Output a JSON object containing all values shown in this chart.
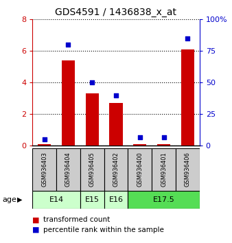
{
  "title": "GDS4591 / 1436838_x_at",
  "samples": [
    "GSM936403",
    "GSM936404",
    "GSM936405",
    "GSM936402",
    "GSM936400",
    "GSM936401",
    "GSM936406"
  ],
  "transformed_count": [
    0.1,
    5.4,
    3.3,
    2.7,
    0.1,
    0.1,
    6.1
  ],
  "percentile_rank": [
    5,
    80,
    50,
    40,
    7,
    7,
    85
  ],
  "age_groups": [
    {
      "label": "E14",
      "span": [
        0,
        2
      ],
      "color": "#ccffcc"
    },
    {
      "label": "E15",
      "span": [
        2,
        3
      ],
      "color": "#ccffcc"
    },
    {
      "label": "E16",
      "span": [
        3,
        4
      ],
      "color": "#ccffcc"
    },
    {
      "label": "E17.5",
      "span": [
        4,
        7
      ],
      "color": "#55dd55"
    }
  ],
  "bar_color": "#cc0000",
  "dot_color": "#0000cc",
  "ylim_left": [
    0,
    8
  ],
  "ylim_right": [
    0,
    100
  ],
  "yticks_left": [
    0,
    2,
    4,
    6,
    8
  ],
  "yticks_right": [
    0,
    25,
    50,
    75,
    100
  ],
  "sample_bg_color": "#cccccc",
  "table_border_color": "#000000",
  "legend_items": [
    {
      "label": "transformed count",
      "color": "#cc0000"
    },
    {
      "label": "percentile rank within the sample",
      "color": "#0000cc"
    }
  ]
}
